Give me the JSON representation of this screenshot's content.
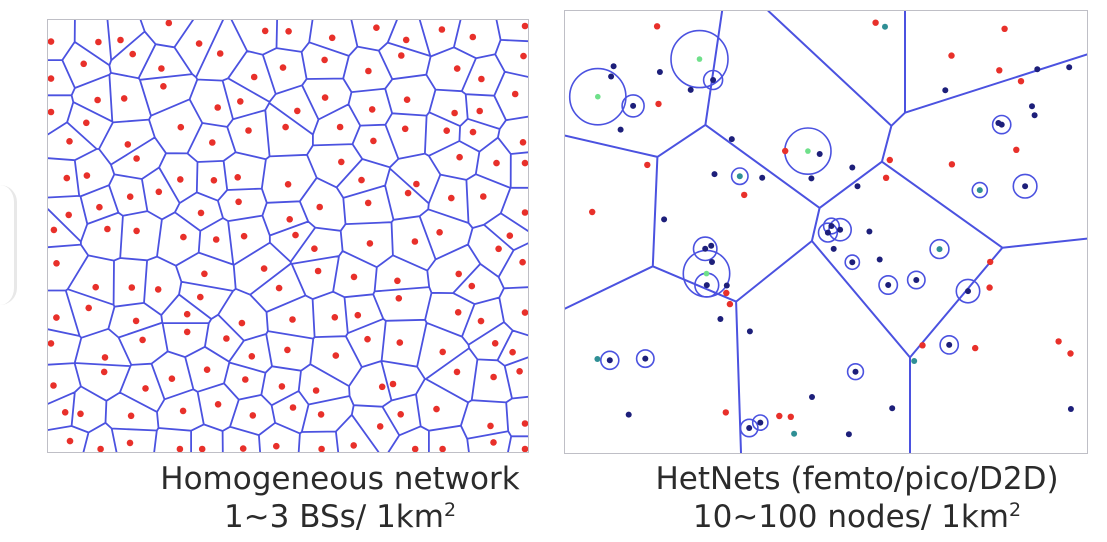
{
  "left_panel": {
    "caption_title": "Homogeneous network",
    "caption_density_prefix": "1~3 BSs/ 1km",
    "caption_density_exponent": "2"
  },
  "right_panel": {
    "caption_title": "HetNets (femto/pico/D2D)",
    "caption_density_prefix": "10~100 nodes/ 1km",
    "caption_density_exponent": "2"
  },
  "colors": {
    "cell_edge": "#4b52e0",
    "macro_bs": "#e8302a",
    "small_cell_node": "#1d1f7a",
    "femto_node": "#6fe08a",
    "teal_node": "#2f8f95"
  },
  "legend_of_marks": {
    "macro_bs_icon": "red-dot",
    "small_cell_icon": "dark-blue-dot",
    "femto_icon": "green-dot",
    "coverage_icon": "blue-circle"
  }
}
